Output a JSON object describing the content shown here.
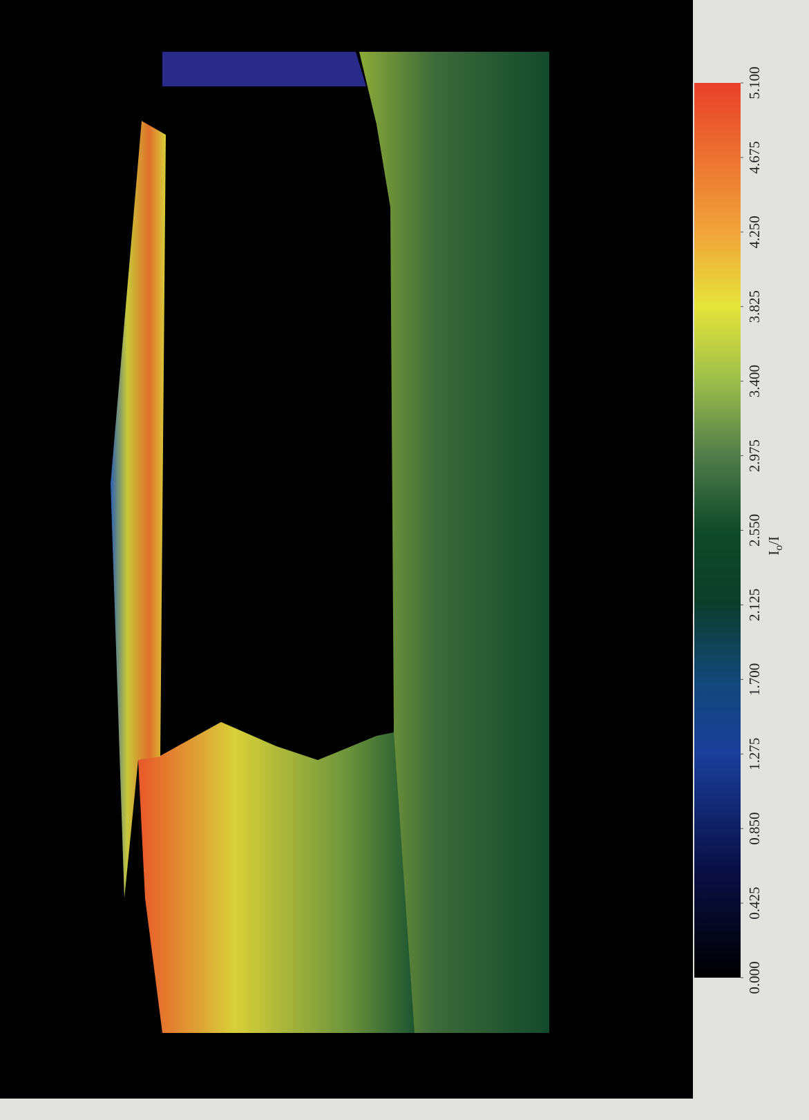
{
  "colorbar": {
    "label_parts": [
      "I",
      "o",
      "/I"
    ],
    "lim": [
      0,
      5.1
    ],
    "ticks": [
      {
        "value": 0,
        "label": "0.000"
      },
      {
        "value": 0.425,
        "label": "0.425"
      },
      {
        "value": 0.85,
        "label": "0.850"
      },
      {
        "value": 1.275,
        "label": "1.275"
      },
      {
        "value": 1.7,
        "label": "1.700"
      },
      {
        "value": 2.125,
        "label": "2.125"
      },
      {
        "value": 2.55,
        "label": "2.550"
      },
      {
        "value": 2.975,
        "label": "2.975"
      },
      {
        "value": 3.4,
        "label": "3.400"
      },
      {
        "value": 3.825,
        "label": "3.825"
      },
      {
        "value": 4.25,
        "label": "4.250"
      },
      {
        "value": 4.675,
        "label": "4.675"
      },
      {
        "value": 5.1,
        "label": "5.100"
      }
    ]
  }
}
